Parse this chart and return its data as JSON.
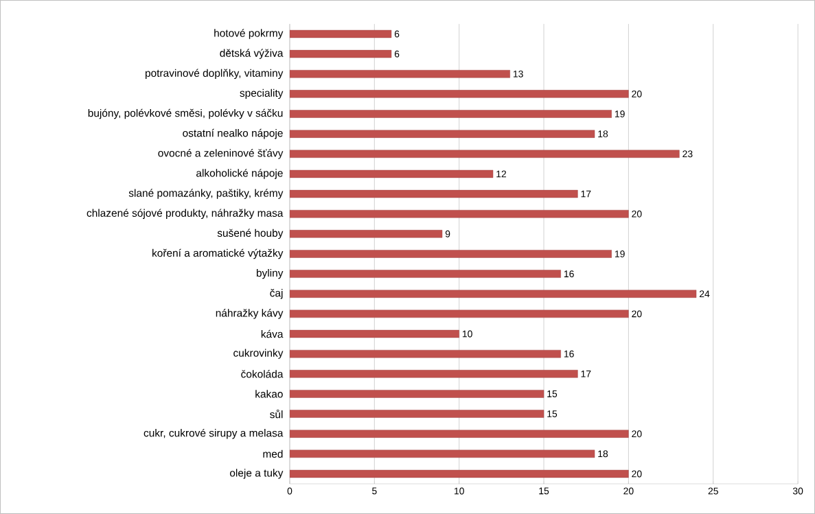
{
  "chart_data": {
    "type": "bar",
    "orientation": "horizontal",
    "categories": [
      "hotové pokrmy",
      "dětská výživa",
      "potravinové doplňky, vitaminy",
      "speciality",
      "bujóny, polévkové směsi, polévky v sáčku",
      "ostatní nealko nápoje",
      "ovocné a zeleninové šťávy",
      "alkoholické nápoje",
      "slané pomazánky, paštiky, krémy",
      "chlazené sójové produkty, náhražky masa",
      "sušené houby",
      "koření a aromatické výtažky",
      "byliny",
      "čaj",
      "náhražky kávy",
      "káva",
      "cukrovinky",
      "čokoláda",
      "kakao",
      "sůl",
      "cukr, cukrové sirupy a melasa",
      "med",
      "oleje a tuky"
    ],
    "values": [
      6,
      6,
      13,
      20,
      19,
      18,
      23,
      12,
      17,
      20,
      9,
      19,
      16,
      24,
      20,
      10,
      16,
      17,
      15,
      15,
      20,
      18,
      20
    ],
    "color": "#c0504d",
    "xlim": [
      0,
      30
    ],
    "xticks": [
      0,
      5,
      10,
      15,
      20,
      25,
      30
    ],
    "grid": "x",
    "data_labels": true
  }
}
